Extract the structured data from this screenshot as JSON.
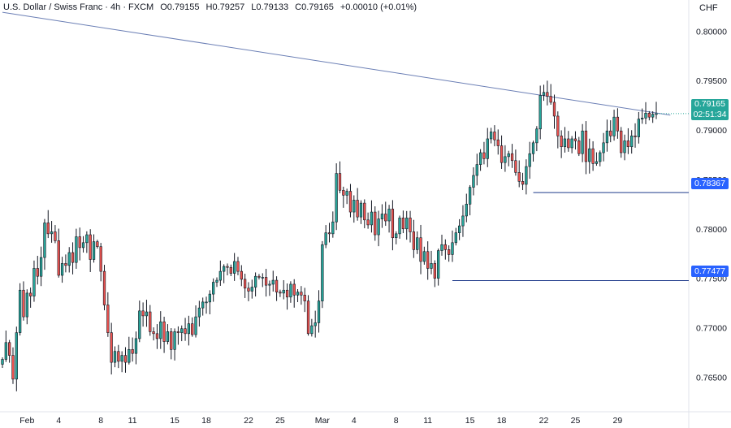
{
  "header": {
    "symbol": "U.S. Dollar / Swiss Franc · 4h · FXCM",
    "open": "O0.79155",
    "high": "H0.79257",
    "low": "L0.79133",
    "close": "C0.79165",
    "change": "+0.00010 (+0.01%)"
  },
  "currency": "CHF",
  "last_price": {
    "value": "0.79165",
    "countdown": "02:51:34"
  },
  "levels": [
    {
      "label": "0.78367",
      "value": 0.78367
    },
    {
      "label": "0.77477",
      "value": 0.77477
    }
  ],
  "colors": {
    "up": "#26a69a",
    "down": "#ef5350",
    "candle_edge": "#131722",
    "level_line": "#2962ff",
    "trendline": "#6b7fb5",
    "grid": "#ffffff",
    "axis_text": "#131722"
  },
  "chart_data": {
    "type": "candlestick",
    "title": "U.S. Dollar / Swiss Franc · 4h · FXCM",
    "ylim": [
      0.7615,
      0.8015
    ],
    "y_ticks": [
      "0.80000",
      "0.79500",
      "0.79000",
      "0.78500",
      "0.78000",
      "0.77500",
      "0.77000",
      "0.76500"
    ],
    "y_tick_values": [
      0.8,
      0.795,
      0.79,
      0.785,
      0.78,
      0.775,
      0.77,
      0.765
    ],
    "x_ticks": [
      "Feb",
      "4",
      "8",
      "11",
      "15",
      "18",
      "22",
      "25",
      "Mar",
      "4",
      "8",
      "11",
      "15",
      "18",
      "22",
      "25",
      "29"
    ],
    "x_tick_index": [
      7,
      16,
      28,
      37,
      49,
      58,
      70,
      79,
      91,
      100,
      112,
      121,
      133,
      142,
      154,
      163,
      175
    ],
    "horizontal_levels": [
      0.78367,
      0.77477
    ],
    "trendline": {
      "from": {
        "index": 0,
        "value": 0.8019
      },
      "to": {
        "index": 190,
        "value": 0.7915
      }
    },
    "candles_close": [
      0.7668,
      0.7685,
      0.7672,
      0.7648,
      0.7695,
      0.7738,
      0.7711,
      0.7735,
      0.7732,
      0.776,
      0.7752,
      0.7771,
      0.7806,
      0.7795,
      0.7797,
      0.7788,
      0.7753,
      0.7765,
      0.7763,
      0.7776,
      0.7766,
      0.7792,
      0.7781,
      0.7786,
      0.7794,
      0.7769,
      0.7787,
      0.7782,
      0.7757,
      0.7723,
      0.7695,
      0.7665,
      0.7676,
      0.7666,
      0.7672,
      0.7665,
      0.7678,
      0.7674,
      0.7689,
      0.7717,
      0.7712,
      0.7716,
      0.7696,
      0.7694,
      0.7689,
      0.7706,
      0.7686,
      0.7696,
      0.7678,
      0.7696,
      0.7695,
      0.7699,
      0.7694,
      0.7704,
      0.7693,
      0.7711,
      0.772,
      0.7726,
      0.7726,
      0.7734,
      0.7746,
      0.7748,
      0.7757,
      0.7762,
      0.7761,
      0.7755,
      0.7767,
      0.7757,
      0.7749,
      0.774,
      0.7737,
      0.7741,
      0.7752,
      0.7751,
      0.7751,
      0.7743,
      0.7744,
      0.7748,
      0.7736,
      0.7735,
      0.7738,
      0.7731,
      0.7744,
      0.7733,
      0.7736,
      0.7733,
      0.7727,
      0.7694,
      0.7702,
      0.7705,
      0.7727,
      0.7784,
      0.7796,
      0.7795,
      0.7807,
      0.7856,
      0.7839,
      0.7834,
      0.7838,
      0.7817,
      0.7829,
      0.7812,
      0.7826,
      0.7809,
      0.7804,
      0.7817,
      0.7794,
      0.781,
      0.7815,
      0.7808,
      0.782,
      0.7791,
      0.7795,
      0.7811,
      0.78,
      0.7811,
      0.7797,
      0.7779,
      0.7791,
      0.7767,
      0.7777,
      0.776,
      0.7765,
      0.775,
      0.7778,
      0.7784,
      0.7779,
      0.7774,
      0.7786,
      0.7796,
      0.7803,
      0.7813,
      0.7825,
      0.7842,
      0.7854,
      0.7865,
      0.7877,
      0.7871,
      0.7891,
      0.7898,
      0.789,
      0.7884,
      0.7867,
      0.7873,
      0.7876,
      0.7869,
      0.7857,
      0.7848,
      0.7845,
      0.7863,
      0.7876,
      0.7887,
      0.7901,
      0.7935,
      0.7938,
      0.7934,
      0.7928,
      0.7914,
      0.7894,
      0.7883,
      0.7891,
      0.7882,
      0.7891,
      0.7889,
      0.7876,
      0.7899,
      0.7868,
      0.7881,
      0.7866,
      0.7868,
      0.7877,
      0.7887,
      0.7899,
      0.7894,
      0.7913,
      0.7899,
      0.7877,
      0.7889,
      0.7883,
      0.7894,
      0.7893,
      0.7911,
      0.7912,
      0.7917,
      0.7913,
      0.7916,
      0.79165
    ]
  }
}
